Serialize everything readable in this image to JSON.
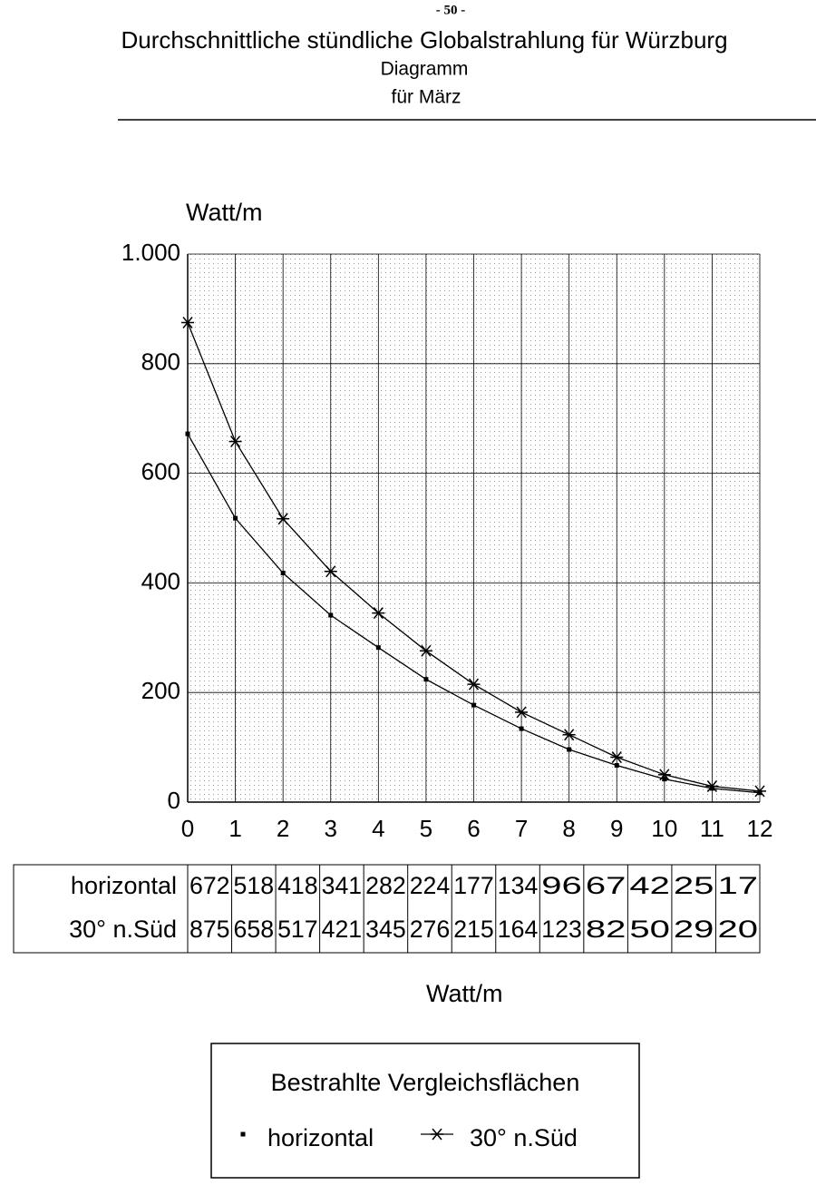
{
  "page_number": "- 50 -",
  "chart_data": {
    "type": "line",
    "title": "Durchschnittliche stündliche Globalstrahlung für Würzburg",
    "subtitle": "Diagramm",
    "subtitle2": "für März",
    "y_label": "Watt/m",
    "table_label": "Watt/m",
    "legend_title": "Bestrahlte Vergleichsflächen",
    "x": [
      0,
      1,
      2,
      3,
      4,
      5,
      6,
      7,
      8,
      9,
      10,
      11,
      12
    ],
    "xlim": [
      0,
      12
    ],
    "xticks": [
      0,
      1,
      2,
      3,
      4,
      5,
      6,
      7,
      8,
      9,
      10,
      11,
      12
    ],
    "ylim": [
      0,
      1000
    ],
    "yticks": [
      0,
      200,
      400,
      600,
      800,
      {
        "value": 1000,
        "label": "1.000"
      }
    ],
    "grid": true,
    "series": [
      {
        "name": "horizontal",
        "color": "#000000",
        "marker": "square",
        "values": [
          672,
          518,
          418,
          341,
          282,
          224,
          177,
          134,
          96,
          67,
          42,
          25,
          17
        ]
      },
      {
        "name": "30° n.Süd",
        "color": "#000000",
        "marker": "asterisk",
        "values": [
          875,
          658,
          517,
          421,
          345,
          276,
          215,
          164,
          123,
          82,
          50,
          29,
          20
        ]
      }
    ]
  }
}
